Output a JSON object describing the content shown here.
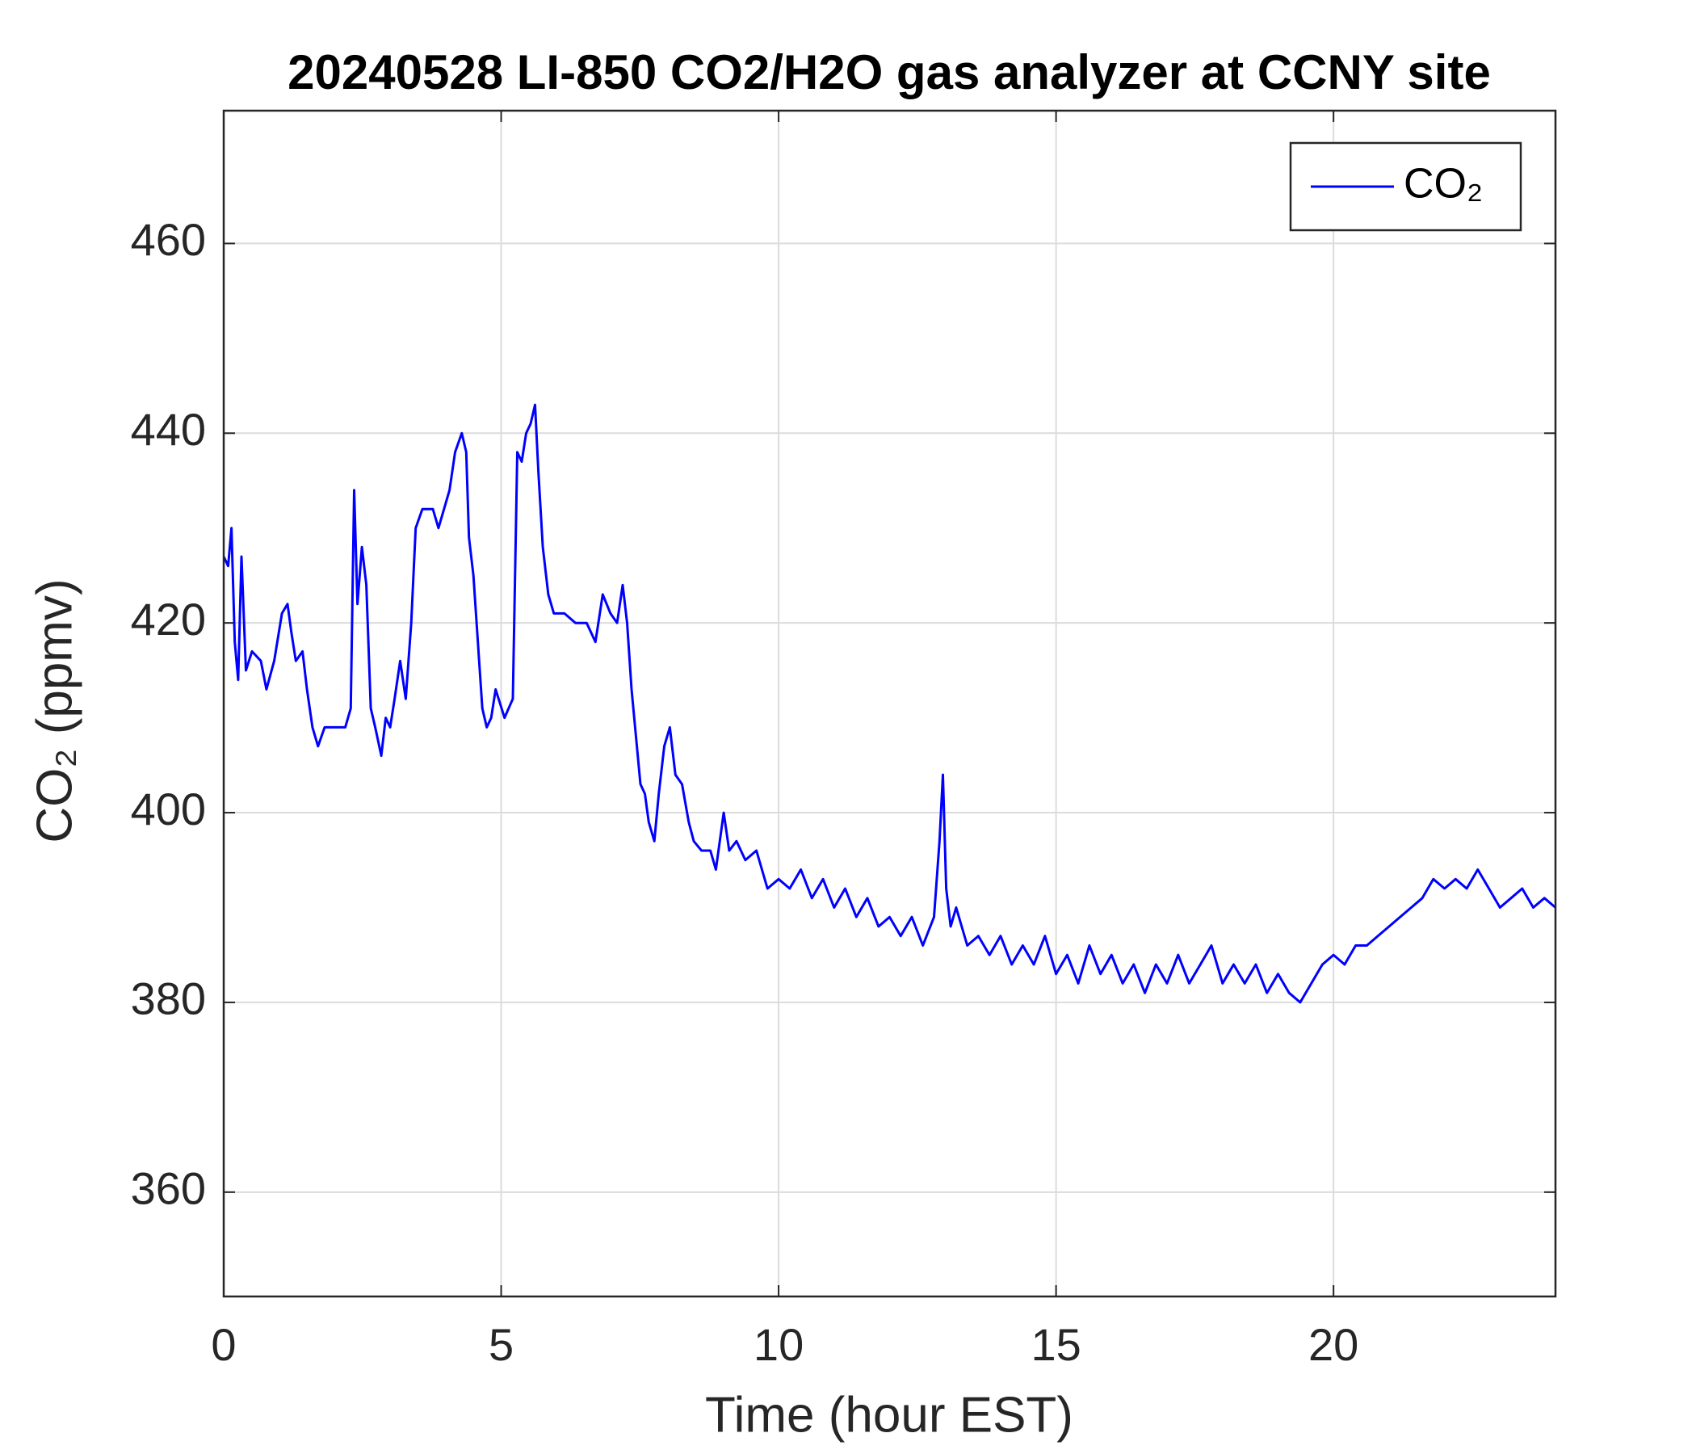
{
  "chart_data": {
    "type": "line",
    "title": "20240528 LI-850 CO2/H2O gas analyzer at CCNY site",
    "x_label": "Time (hour EST)",
    "y_label": "CO₂ (ppmv)",
    "xlim": [
      0,
      24
    ],
    "xticks": [
      0,
      5,
      10,
      15,
      20
    ],
    "ylim": [
      349,
      474
    ],
    "yticks": [
      360,
      380,
      400,
      420,
      440,
      460
    ],
    "grid": true,
    "legend": "upper right",
    "x": [
      0,
      0.08,
      0.14,
      0.2,
      0.26,
      0.32,
      0.4,
      0.51,
      0.67,
      0.77,
      0.91,
      1.05,
      1.15,
      1.22,
      1.3,
      1.42,
      1.5,
      1.6,
      1.7,
      1.82,
      2.0,
      2.19,
      2.29,
      2.35,
      2.41,
      2.49,
      2.57,
      2.65,
      2.73,
      2.84,
      2.92,
      3.0,
      3.08,
      3.18,
      3.28,
      3.38,
      3.46,
      3.58,
      3.77,
      3.87,
      3.97,
      4.07,
      4.17,
      4.29,
      4.37,
      4.42,
      4.5,
      4.58,
      4.66,
      4.74,
      4.82,
      4.9,
      5.06,
      5.21,
      5.29,
      5.37,
      5.45,
      5.53,
      5.61,
      5.67,
      5.75,
      5.85,
      5.95,
      6.14,
      6.34,
      6.54,
      6.7,
      6.83,
      6.97,
      7.09,
      7.19,
      7.27,
      7.35,
      7.43,
      7.51,
      7.59,
      7.66,
      7.76,
      7.84,
      7.94,
      8.04,
      8.14,
      8.26,
      8.38,
      8.47,
      8.61,
      8.77,
      8.87,
      9.01,
      9.11,
      9.24,
      9.4,
      9.6,
      9.8,
      10.0,
      10.2,
      10.4,
      10.6,
      10.8,
      11.0,
      11.2,
      11.4,
      11.6,
      11.8,
      12.0,
      12.2,
      12.4,
      12.6,
      12.8,
      12.9,
      12.96,
      13.02,
      13.1,
      13.2,
      13.4,
      13.6,
      13.8,
      14.0,
      14.2,
      14.4,
      14.6,
      14.8,
      15.0,
      15.2,
      15.4,
      15.6,
      15.8,
      16.0,
      16.2,
      16.4,
      16.6,
      16.8,
      17.0,
      17.2,
      17.4,
      17.6,
      17.8,
      18.0,
      18.2,
      18.4,
      18.6,
      18.8,
      19.0,
      19.2,
      19.4,
      19.6,
      19.8,
      20.0,
      20.2,
      20.4,
      20.6,
      20.8,
      21.0,
      21.2,
      21.4,
      21.6,
      21.8,
      22.0,
      22.2,
      22.4,
      22.6,
      22.8,
      23.0,
      23.2,
      23.4,
      23.6,
      23.8,
      24.0
    ],
    "series": [
      {
        "name": "CO₂",
        "color": "#0000ff",
        "values": [
          427,
          426,
          430,
          418,
          414,
          427,
          415,
          417,
          416,
          413,
          416,
          421,
          422,
          419,
          416,
          417,
          413,
          409,
          407,
          409,
          409,
          409,
          411,
          434,
          422,
          428,
          424,
          411,
          409,
          406,
          410,
          409,
          412,
          416,
          412,
          420,
          430,
          432,
          432,
          430,
          432,
          434,
          438,
          440,
          438,
          429,
          425,
          418,
          411,
          409,
          410,
          413,
          410,
          412,
          438,
          437,
          440,
          441,
          443,
          436,
          428,
          423,
          421,
          421,
          420,
          420,
          418,
          423,
          421,
          420,
          424,
          420,
          413,
          408,
          403,
          402,
          399,
          397,
          402,
          407,
          409,
          404,
          403,
          399,
          397,
          396,
          396,
          394,
          400,
          396,
          397,
          395,
          396,
          392,
          393,
          392,
          394,
          391,
          393,
          390,
          392,
          389,
          391,
          388,
          389,
          387,
          389,
          386,
          389,
          397,
          404,
          392,
          388,
          390,
          386,
          387,
          385,
          387,
          384,
          386,
          384,
          387,
          383,
          385,
          382,
          386,
          383,
          385,
          382,
          384,
          381,
          384,
          382,
          385,
          382,
          384,
          386,
          382,
          384,
          382,
          384,
          381,
          383,
          381,
          380,
          382,
          384,
          385,
          384,
          386,
          386,
          387,
          388,
          389,
          390,
          391,
          393,
          392,
          393,
          392,
          394,
          392,
          390,
          391,
          392,
          390,
          391,
          390
        ]
      }
    ]
  }
}
